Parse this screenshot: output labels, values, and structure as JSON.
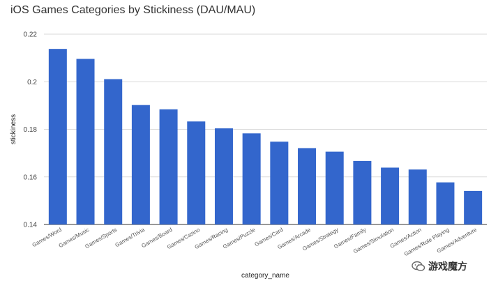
{
  "chart_data": {
    "type": "bar",
    "title": "iOS Games Categories by Stickiness (DAU/MAU)",
    "xlabel": "category_name",
    "ylabel": "stickiness",
    "ylim": [
      0.14,
      0.22
    ],
    "yticks": [
      "0.14",
      "0.16",
      "0.18",
      "0.2",
      "0.22"
    ],
    "grid": true,
    "bar_color": "#3366cc",
    "categories": [
      "Games/Word",
      "Games/Music",
      "Games/Sports",
      "Games/Trivia",
      "Games/Board",
      "Games/Casino",
      "Games/Racing",
      "Games/Puzzle",
      "Games/Card",
      "Games/Arcade",
      "Games/Strategy",
      "Games/Family",
      "Games/Simulation",
      "Games/Action",
      "Games/Role Playing",
      "Games/Adventure"
    ],
    "values": [
      0.2138,
      0.2096,
      0.2011,
      0.1902,
      0.1884,
      0.1833,
      0.1804,
      0.1783,
      0.1748,
      0.1721,
      0.1706,
      0.1667,
      0.1639,
      0.1631,
      0.1577,
      0.1541
    ]
  },
  "watermark": {
    "text": "游戏魔方",
    "icon": "wechat-icon"
  }
}
